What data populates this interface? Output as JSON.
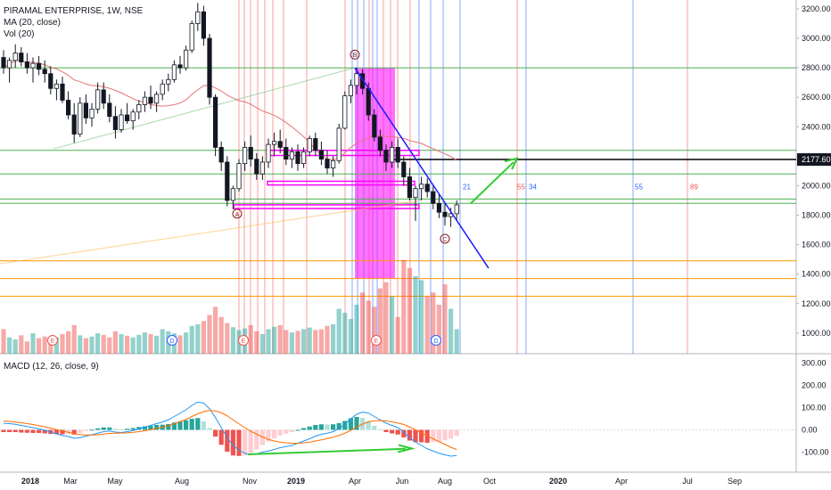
{
  "header": {
    "symbol_line": "PIRAMAL ENTERPRISE, 1W, NSE",
    "ma_label": "MA (20, close)",
    "vol_label": "Vol (20)",
    "macd_label": "MACD (12, 26, close, 9)"
  },
  "colors": {
    "up": "#26a69a",
    "down": "#ef5350",
    "candle": "#131722",
    "ma": "#e57373",
    "trendline": "#1a1aff",
    "arrow": "#33cc33",
    "box": "#ff00ff",
    "macd": "#2196f3",
    "signal": "#ff6d00"
  },
  "chart_data": [
    {
      "type": "candlestick",
      "title": "PIRAMAL ENTERPRISE, 1W, NSE",
      "y_ticks": [
        "3200.00",
        "3000.00",
        "2800.00",
        "2600.00",
        "2400.00",
        "2200.00",
        "2000.00",
        "1800.00",
        "1600.00",
        "1400.00",
        "1200.00",
        "1000.00"
      ],
      "ylim": [
        860,
        3260
      ],
      "x_ticks": [
        "2018",
        "Mar",
        "May",
        "Aug",
        "Nov",
        "2019",
        "Apr",
        "Jun",
        "Aug",
        "Oct",
        "2020",
        "Apr",
        "Jul",
        "Sep"
      ],
      "price_label": "2177.60",
      "horizontal_levels_green": [
        2800,
        2240,
        2080,
        1910,
        1880
      ],
      "horizontal_level_black": 2177.6,
      "horizontal_levels_orange": [
        1490,
        1370,
        1250
      ],
      "fib_labels": [
        "21",
        "55",
        "34",
        "55",
        "89"
      ],
      "wave_labels": [
        "A",
        "B",
        "C"
      ],
      "event_markers": [
        "E",
        "D",
        "E",
        "E",
        "D"
      ],
      "ohlc": [
        [
          2870,
          2920,
          2760,
          2800
        ],
        [
          2800,
          2870,
          2700,
          2850
        ],
        [
          2850,
          2960,
          2800,
          2900
        ],
        [
          2900,
          2940,
          2810,
          2840
        ],
        [
          2840,
          2900,
          2760,
          2800
        ],
        [
          2800,
          2870,
          2700,
          2830
        ],
        [
          2830,
          2880,
          2750,
          2790
        ],
        [
          2790,
          2850,
          2700,
          2760
        ],
        [
          2760,
          2810,
          2620,
          2660
        ],
        [
          2660,
          2720,
          2580,
          2690
        ],
        [
          2690,
          2740,
          2560,
          2580
        ],
        [
          2580,
          2640,
          2450,
          2480
        ],
        [
          2480,
          2560,
          2290,
          2350
        ],
        [
          2350,
          2600,
          2330,
          2560
        ],
        [
          2560,
          2620,
          2420,
          2460
        ],
        [
          2460,
          2560,
          2400,
          2520
        ],
        [
          2520,
          2700,
          2490,
          2650
        ],
        [
          2650,
          2700,
          2520,
          2560
        ],
        [
          2560,
          2620,
          2430,
          2470
        ],
        [
          2470,
          2540,
          2320,
          2380
        ],
        [
          2380,
          2520,
          2360,
          2480
        ],
        [
          2480,
          2560,
          2420,
          2440
        ],
        [
          2440,
          2520,
          2380,
          2500
        ],
        [
          2500,
          2580,
          2450,
          2550
        ],
        [
          2550,
          2640,
          2500,
          2600
        ],
        [
          2600,
          2680,
          2520,
          2560
        ],
        [
          2560,
          2640,
          2500,
          2620
        ],
        [
          2620,
          2720,
          2580,
          2690
        ],
        [
          2690,
          2760,
          2640,
          2720
        ],
        [
          2720,
          2850,
          2700,
          2820
        ],
        [
          2820,
          2880,
          2760,
          2800
        ],
        [
          2800,
          2950,
          2780,
          2920
        ],
        [
          2920,
          3120,
          2900,
          3100
        ],
        [
          3100,
          3240,
          3050,
          3180
        ],
        [
          3180,
          3220,
          2950,
          3000
        ],
        [
          3000,
          3030,
          2550,
          2600
        ],
        [
          2600,
          2620,
          2200,
          2260
        ],
        [
          2260,
          2300,
          2100,
          2160
        ],
        [
          2160,
          2200,
          1860,
          1900
        ],
        [
          1900,
          2000,
          1840,
          1980
        ],
        [
          1980,
          2180,
          1960,
          2150
        ],
        [
          2150,
          2300,
          2100,
          2260
        ],
        [
          2260,
          2340,
          2130,
          2180
        ],
        [
          2180,
          2220,
          2040,
          2080
        ],
        [
          2080,
          2200,
          2040,
          2160
        ],
        [
          2160,
          2320,
          2120,
          2280
        ],
        [
          2280,
          2360,
          2200,
          2300
        ],
        [
          2300,
          2380,
          2220,
          2260
        ],
        [
          2260,
          2320,
          2140,
          2180
        ],
        [
          2180,
          2260,
          2120,
          2230
        ],
        [
          2230,
          2280,
          2100,
          2150
        ],
        [
          2150,
          2260,
          2120,
          2230
        ],
        [
          2230,
          2340,
          2200,
          2320
        ],
        [
          2320,
          2360,
          2200,
          2240
        ],
        [
          2240,
          2300,
          2140,
          2180
        ],
        [
          2180,
          2240,
          2080,
          2120
        ],
        [
          2120,
          2200,
          2060,
          2170
        ],
        [
          2170,
          2420,
          2150,
          2390
        ],
        [
          2390,
          2640,
          2380,
          2610
        ],
        [
          2610,
          2720,
          2560,
          2680
        ],
        [
          2680,
          2800,
          2620,
          2760
        ],
        [
          2760,
          2790,
          2620,
          2660
        ],
        [
          2660,
          2700,
          2440,
          2480
        ],
        [
          2480,
          2520,
          2300,
          2330
        ],
        [
          2330,
          2380,
          2200,
          2240
        ],
        [
          2240,
          2280,
          2100,
          2160
        ],
        [
          2160,
          2300,
          2120,
          2260
        ],
        [
          2260,
          2320,
          2120,
          2160
        ],
        [
          2160,
          2200,
          2000,
          2060
        ],
        [
          2060,
          2120,
          1900,
          1920
        ],
        [
          1920,
          2000,
          1760,
          1980
        ],
        [
          1980,
          2060,
          1900,
          2010
        ],
        [
          2010,
          2050,
          1920,
          1960
        ],
        [
          1960,
          2000,
          1840,
          1880
        ],
        [
          1880,
          1940,
          1780,
          1820
        ],
        [
          1820,
          1880,
          1730,
          1790
        ],
        [
          1790,
          1850,
          1720,
          1810
        ],
        [
          1810,
          1900,
          1760,
          1870
        ]
      ],
      "volume": [
        60,
        40,
        35,
        45,
        30,
        50,
        38,
        42,
        35,
        40,
        48,
        55,
        70,
        45,
        38,
        42,
        50,
        46,
        40,
        55,
        48,
        44,
        40,
        46,
        52,
        48,
        44,
        60,
        55,
        50,
        45,
        52,
        68,
        72,
        80,
        95,
        115,
        90,
        75,
        65,
        58,
        62,
        70,
        55,
        48,
        60,
        66,
        70,
        58,
        52,
        56,
        60,
        64,
        58,
        60,
        68,
        72,
        110,
        100,
        85,
        120,
        150,
        130,
        115,
        160,
        175,
        140,
        90,
        230,
        210,
        190,
        180,
        140,
        150,
        120,
        170,
        110,
        60
      ],
      "macd": [
        30,
        28,
        25,
        20,
        15,
        10,
        5,
        -2,
        -10,
        -18,
        -25,
        -30,
        -38,
        -35,
        -28,
        -22,
        -15,
        -8,
        -5,
        -10,
        -12,
        -8,
        -3,
        5,
        12,
        20,
        28,
        35,
        45,
        60,
        75,
        90,
        110,
        125,
        120,
        95,
        55,
        10,
        -35,
        -70,
        -90,
        -105,
        -110,
        -108,
        -100,
        -95,
        -88,
        -80,
        -75,
        -70,
        -60,
        -50,
        -40,
        -28,
        -20,
        -15,
        -8,
        5,
        25,
        50,
        70,
        80,
        75,
        60,
        45,
        30,
        20,
        10,
        -10,
        -35,
        -55,
        -70,
        -85,
        -95,
        -105,
        -112,
        -118,
        -115
      ],
      "signal": [
        40,
        38,
        35,
        32,
        28,
        24,
        19,
        14,
        8,
        1,
        -5,
        -11,
        -17,
        -21,
        -23,
        -23,
        -22,
        -19,
        -16,
        -15,
        -14,
        -13,
        -11,
        -8,
        -4,
        1,
        6,
        12,
        19,
        27,
        37,
        47,
        60,
        72,
        82,
        87,
        85,
        77,
        63,
        45,
        27,
        10,
        -6,
        -19,
        -32,
        -43,
        -50,
        -55,
        -58,
        -60,
        -60,
        -58,
        -55,
        -50,
        -45,
        -39,
        -33,
        -25,
        -15,
        -2,
        12,
        26,
        36,
        41,
        42,
        40,
        36,
        31,
        24,
        13,
        0,
        -14,
        -27,
        -40,
        -53,
        -65,
        -78,
        -88
      ],
      "macd_ticks": [
        "300.00",
        "200.00",
        "100.00",
        "0.00",
        "-100.00"
      ],
      "macd_ylim": [
        -190,
        330
      ]
    }
  ]
}
